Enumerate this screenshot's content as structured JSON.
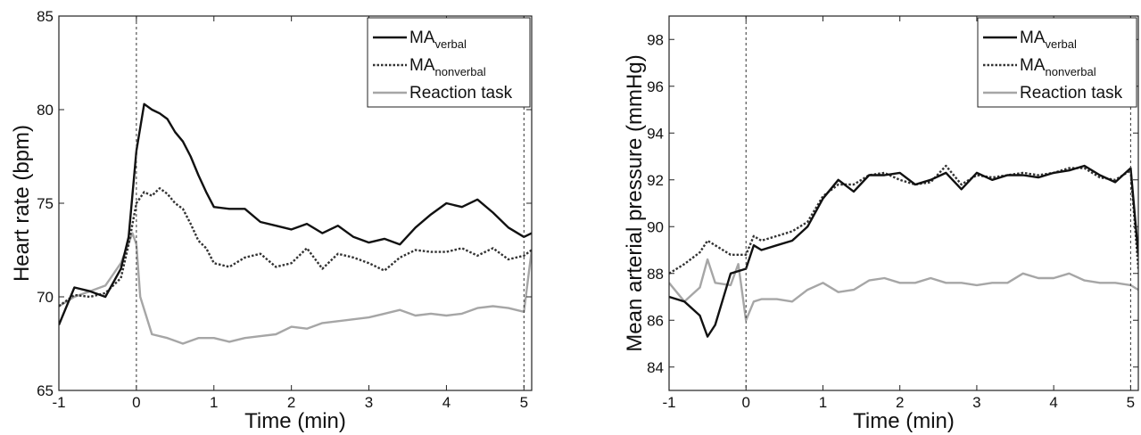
{
  "chart_data": [
    {
      "type": "line",
      "xlabel": "Time (min)",
      "ylabel": "Heart rate (bpm)",
      "xlim": [
        -1,
        5.1
      ],
      "ylim": [
        65,
        85
      ],
      "xticks": [
        "-1",
        "0",
        "1",
        "2",
        "3",
        "4",
        "5"
      ],
      "yticks": [
        "65",
        "70",
        "75",
        "80",
        "85"
      ],
      "vlines": [
        0,
        5
      ],
      "legend_position": "top-right",
      "series": [
        {
          "name": "MA",
          "name_sub": "verbal",
          "color": "#111111",
          "style": "solid",
          "x": [
            -1,
            -0.8,
            -0.6,
            -0.4,
            -0.2,
            -0.1,
            0,
            0.1,
            0.2,
            0.3,
            0.4,
            0.5,
            0.6,
            0.7,
            0.8,
            0.9,
            1.0,
            1.2,
            1.4,
            1.6,
            1.8,
            2.0,
            2.2,
            2.4,
            2.6,
            2.8,
            3.0,
            3.2,
            3.4,
            3.6,
            3.8,
            4.0,
            4.2,
            4.4,
            4.6,
            4.8,
            5.0,
            5.1
          ],
          "y": [
            68.5,
            70.5,
            70.3,
            70.0,
            71.5,
            73.2,
            77.8,
            80.3,
            80.0,
            79.8,
            79.5,
            78.8,
            78.3,
            77.5,
            76.5,
            75.6,
            74.8,
            74.7,
            74.7,
            74.0,
            73.8,
            73.6,
            73.9,
            73.4,
            73.8,
            73.2,
            72.9,
            73.1,
            72.8,
            73.7,
            74.4,
            75.0,
            74.8,
            75.2,
            74.5,
            73.7,
            73.2,
            73.4
          ]
        },
        {
          "name": "MA",
          "name_sub": "nonverbal",
          "color": "#333333",
          "style": "dotted",
          "x": [
            -1,
            -0.8,
            -0.6,
            -0.4,
            -0.2,
            -0.1,
            0,
            0.1,
            0.2,
            0.3,
            0.4,
            0.5,
            0.6,
            0.7,
            0.8,
            0.9,
            1.0,
            1.2,
            1.4,
            1.6,
            1.8,
            2.0,
            2.2,
            2.4,
            2.6,
            2.8,
            3.0,
            3.2,
            3.4,
            3.6,
            3.8,
            4.0,
            4.2,
            4.4,
            4.6,
            4.8,
            5.0,
            5.1
          ],
          "y": [
            69.5,
            70.1,
            70.0,
            70.2,
            71.0,
            72.8,
            75.0,
            75.6,
            75.4,
            75.8,
            75.5,
            75.0,
            74.7,
            73.9,
            73.0,
            72.6,
            71.8,
            71.6,
            72.1,
            72.3,
            71.6,
            71.8,
            72.6,
            71.5,
            72.3,
            72.1,
            71.8,
            71.4,
            72.1,
            72.5,
            72.4,
            72.4,
            72.6,
            72.2,
            72.6,
            72.0,
            72.2,
            72.5
          ]
        },
        {
          "name": "Reaction task",
          "color": "#a6a6a6",
          "style": "solid",
          "x": [
            -1,
            -0.8,
            -0.6,
            -0.4,
            -0.2,
            -0.05,
            0,
            0.05,
            0.2,
            0.4,
            0.6,
            0.8,
            1.0,
            1.2,
            1.4,
            1.6,
            1.8,
            2.0,
            2.2,
            2.4,
            2.6,
            2.8,
            3.0,
            3.2,
            3.4,
            3.6,
            3.8,
            4.0,
            4.2,
            4.4,
            4.6,
            4.8,
            5.0,
            5.1
          ],
          "y": [
            69.5,
            70.0,
            70.3,
            70.6,
            71.8,
            73.4,
            72.8,
            70.0,
            68.0,
            67.8,
            67.5,
            67.8,
            67.8,
            67.6,
            67.8,
            67.9,
            68.0,
            68.4,
            68.3,
            68.6,
            68.7,
            68.8,
            68.9,
            69.1,
            69.3,
            69.0,
            69.1,
            69.0,
            69.1,
            69.4,
            69.5,
            69.4,
            69.2,
            72.5
          ]
        }
      ]
    },
    {
      "type": "line",
      "xlabel": "Time (min)",
      "ylabel": "Mean arterial pressure (mmHg)",
      "xlim": [
        -1,
        5.1
      ],
      "ylim": [
        83,
        99
      ],
      "xticks": [
        "-1",
        "0",
        "1",
        "2",
        "3",
        "4",
        "5"
      ],
      "yticks": [
        "84",
        "86",
        "88",
        "90",
        "92",
        "94",
        "96",
        "98"
      ],
      "vlines": [
        0,
        5
      ],
      "legend_position": "top-right",
      "series": [
        {
          "name": "MA",
          "name_sub": "verbal",
          "color": "#111111",
          "style": "solid",
          "x": [
            -1,
            -0.8,
            -0.6,
            -0.5,
            -0.4,
            -0.2,
            0,
            0.1,
            0.2,
            0.4,
            0.6,
            0.8,
            1.0,
            1.2,
            1.4,
            1.6,
            1.8,
            2.0,
            2.2,
            2.4,
            2.6,
            2.8,
            3.0,
            3.2,
            3.4,
            3.6,
            3.8,
            4.0,
            4.2,
            4.4,
            4.6,
            4.8,
            5.0,
            5.1
          ],
          "y": [
            87.0,
            86.8,
            86.2,
            85.3,
            85.8,
            88.0,
            88.2,
            89.2,
            89.0,
            89.2,
            89.4,
            90.0,
            91.2,
            92.0,
            91.5,
            92.2,
            92.2,
            92.3,
            91.8,
            92.0,
            92.3,
            91.6,
            92.3,
            92.0,
            92.2,
            92.2,
            92.1,
            92.3,
            92.4,
            92.6,
            92.2,
            91.9,
            92.5,
            88.8
          ]
        },
        {
          "name": "MA",
          "name_sub": "nonverbal",
          "color": "#333333",
          "style": "dotted",
          "x": [
            -1,
            -0.8,
            -0.6,
            -0.5,
            -0.4,
            -0.2,
            0,
            0.1,
            0.2,
            0.4,
            0.6,
            0.8,
            1.0,
            1.2,
            1.4,
            1.6,
            1.8,
            2.0,
            2.2,
            2.4,
            2.6,
            2.8,
            3.0,
            3.2,
            3.4,
            3.6,
            3.8,
            4.0,
            4.2,
            4.4,
            4.6,
            4.8,
            5.0,
            5.1
          ],
          "y": [
            88.0,
            88.4,
            88.9,
            89.4,
            89.2,
            88.8,
            88.8,
            89.6,
            89.4,
            89.6,
            89.8,
            90.2,
            91.3,
            91.8,
            91.8,
            92.2,
            92.3,
            92.0,
            91.8,
            91.9,
            92.6,
            91.8,
            92.2,
            92.1,
            92.2,
            92.3,
            92.2,
            92.3,
            92.5,
            92.5,
            92.1,
            92.0,
            92.4,
            88.2
          ]
        },
        {
          "name": "Reaction task",
          "color": "#a6a6a6",
          "style": "solid",
          "x": [
            -1,
            -0.8,
            -0.6,
            -0.5,
            -0.4,
            -0.2,
            -0.1,
            0,
            0.1,
            0.2,
            0.4,
            0.6,
            0.8,
            1.0,
            1.2,
            1.4,
            1.6,
            1.8,
            2.0,
            2.2,
            2.4,
            2.6,
            2.8,
            3.0,
            3.2,
            3.4,
            3.6,
            3.8,
            4.0,
            4.2,
            4.4,
            4.6,
            4.8,
            5.0,
            5.1
          ],
          "y": [
            87.6,
            86.8,
            87.4,
            88.6,
            87.6,
            87.5,
            88.4,
            86.0,
            86.8,
            86.9,
            86.9,
            86.8,
            87.3,
            87.6,
            87.2,
            87.3,
            87.7,
            87.8,
            87.6,
            87.6,
            87.8,
            87.6,
            87.6,
            87.5,
            87.6,
            87.6,
            88.0,
            87.8,
            87.8,
            88.0,
            87.7,
            87.6,
            87.6,
            87.5,
            87.3
          ]
        }
      ]
    }
  ]
}
